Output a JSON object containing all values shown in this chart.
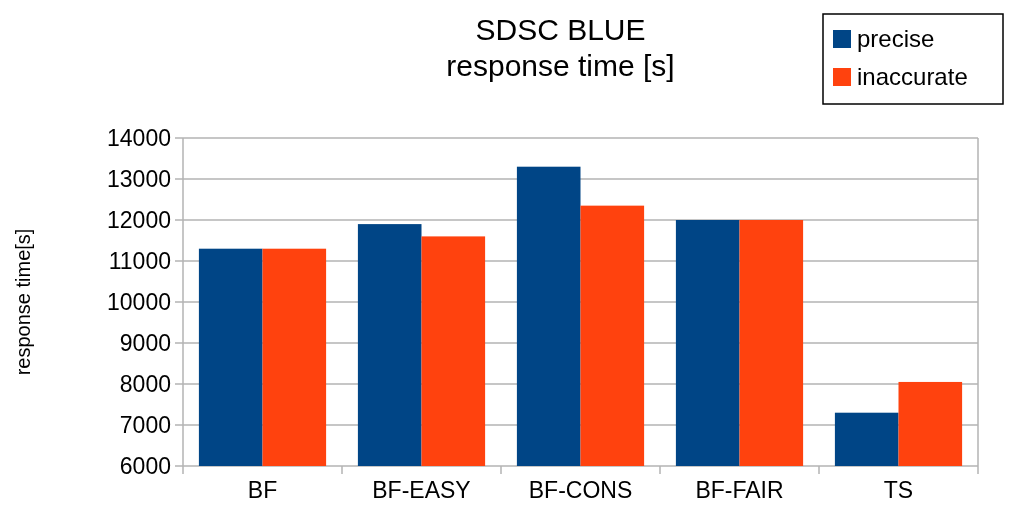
{
  "chart_data": {
    "type": "bar",
    "title": "SDSC BLUE\nresponse time [s]",
    "ylabel": "response time[s]",
    "categories": [
      "BF",
      "BF-EASY",
      "BF-CONS",
      "BF-FAIR",
      "TS"
    ],
    "series": [
      {
        "name": "precise",
        "color": "#004586",
        "values": [
          11300,
          11900,
          13300,
          12000,
          7300
        ]
      },
      {
        "name": "inaccurate",
        "color": "#ff420e",
        "values": [
          11300,
          11600,
          12350,
          12000,
          8050
        ]
      }
    ],
    "ylim": [
      6000,
      14000
    ],
    "yticks": [
      6000,
      7000,
      8000,
      9000,
      10000,
      11000,
      12000,
      13000,
      14000
    ],
    "grid": "y",
    "legend": "top right"
  }
}
